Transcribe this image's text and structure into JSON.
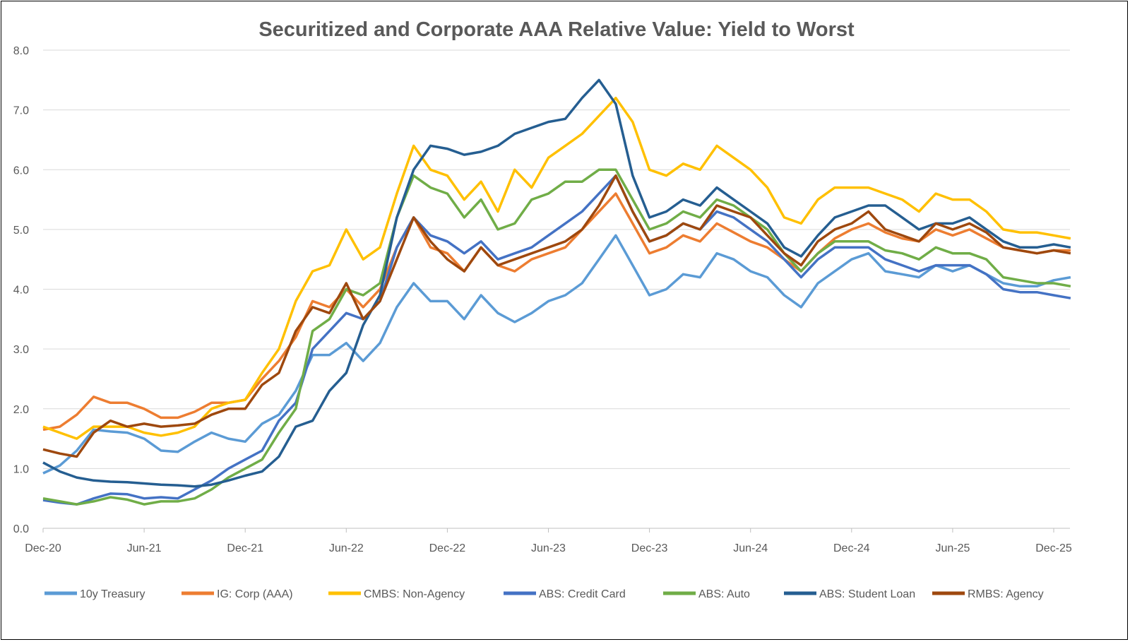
{
  "chart_data": {
    "type": "line",
    "title": "Securitized and Corporate AAA Relative Value: Yield to Worst",
    "xlabel": "",
    "ylabel": "",
    "ylim": [
      0,
      8
    ],
    "yticks": [
      "0.0",
      "1.0",
      "2.0",
      "3.0",
      "4.0",
      "5.0",
      "6.0",
      "7.0",
      "8.0"
    ],
    "xticks": [
      "Dec-20",
      "Jun-21",
      "Dec-21",
      "Jun-22",
      "Dec-22",
      "Jun-23",
      "Dec-23",
      "Jun-24",
      "Dec-24",
      "Jun-25",
      "Dec-25"
    ],
    "grid": "horizontal",
    "legend": "bottom",
    "x": [
      "2020-12",
      "2021-01",
      "2021-02",
      "2021-03",
      "2021-04",
      "2021-05",
      "2021-06",
      "2021-07",
      "2021-08",
      "2021-09",
      "2021-10",
      "2021-11",
      "2021-12",
      "2022-01",
      "2022-02",
      "2022-03",
      "2022-04",
      "2022-05",
      "2022-06",
      "2022-07",
      "2022-08",
      "2022-09",
      "2022-10",
      "2022-11",
      "2022-12",
      "2023-01",
      "2023-02",
      "2023-03",
      "2023-04",
      "2023-05",
      "2023-06",
      "2023-07",
      "2023-08",
      "2023-09",
      "2023-10",
      "2023-11",
      "2023-12",
      "2024-01",
      "2024-02",
      "2024-03",
      "2024-04",
      "2024-05",
      "2024-06",
      "2024-07",
      "2024-08",
      "2024-09",
      "2024-10",
      "2024-11",
      "2024-12",
      "2025-01",
      "2025-02",
      "2025-03",
      "2025-04",
      "2025-05",
      "2025-06",
      "2025-07",
      "2025-08",
      "2025-09",
      "2025-10",
      "2025-11",
      "2025-12",
      "2026-01"
    ],
    "series": [
      {
        "name": "10y Treasury",
        "color": "#5B9BD5",
        "values": [
          0.92,
          1.05,
          1.3,
          1.65,
          1.62,
          1.6,
          1.5,
          1.3,
          1.28,
          1.45,
          1.6,
          1.5,
          1.45,
          1.75,
          1.9,
          2.3,
          2.9,
          2.9,
          3.1,
          2.8,
          3.1,
          3.7,
          4.1,
          3.8,
          3.8,
          3.5,
          3.9,
          3.6,
          3.45,
          3.6,
          3.8,
          3.9,
          4.1,
          4.5,
          4.9,
          4.4,
          3.9,
          4.0,
          4.25,
          4.2,
          4.6,
          4.5,
          4.3,
          4.2,
          3.9,
          3.7,
          4.1,
          4.3,
          4.5,
          4.6,
          4.3,
          4.25,
          4.2,
          4.4,
          4.3,
          4.4,
          4.25,
          4.1,
          4.05,
          4.05,
          4.15,
          4.2
        ]
      },
      {
        "name": "IG: Corp (AAA)",
        "color": "#ED7D31",
        "values": [
          1.65,
          1.7,
          1.9,
          2.2,
          2.1,
          2.1,
          2.0,
          1.85,
          1.85,
          1.95,
          2.1,
          2.1,
          2.15,
          2.5,
          2.8,
          3.2,
          3.8,
          3.7,
          4.0,
          3.7,
          4.0,
          4.7,
          5.2,
          4.7,
          4.6,
          4.3,
          4.7,
          4.4,
          4.3,
          4.5,
          4.6,
          4.7,
          5.0,
          5.3,
          5.6,
          5.1,
          4.6,
          4.7,
          4.9,
          4.8,
          5.1,
          4.95,
          4.8,
          4.7,
          4.5,
          4.3,
          4.6,
          4.85,
          5.0,
          5.1,
          4.95,
          4.85,
          4.8,
          5.0,
          4.9,
          5.0,
          4.85,
          4.7,
          4.65,
          4.6,
          4.65,
          4.65
        ]
      },
      {
        "name": "CMBS: Non-Agency",
        "color": "#FFC000",
        "values": [
          1.7,
          1.6,
          1.5,
          1.7,
          1.7,
          1.7,
          1.6,
          1.55,
          1.6,
          1.7,
          2.0,
          2.1,
          2.15,
          2.6,
          3.0,
          3.8,
          4.3,
          4.4,
          5.0,
          4.5,
          4.7,
          5.6,
          6.4,
          6.0,
          5.9,
          5.5,
          5.8,
          5.3,
          6.0,
          5.7,
          6.2,
          6.4,
          6.6,
          6.9,
          7.2,
          6.8,
          6.0,
          5.9,
          6.1,
          6.0,
          6.4,
          6.2,
          6.0,
          5.7,
          5.2,
          5.1,
          5.5,
          5.7,
          5.7,
          5.7,
          5.6,
          5.5,
          5.3,
          5.6,
          5.5,
          5.5,
          5.3,
          5.0,
          4.95,
          4.95,
          4.9,
          4.85
        ]
      },
      {
        "name": "ABS: Credit Card",
        "color": "#4472C4",
        "values": [
          0.47,
          0.43,
          0.4,
          0.5,
          0.58,
          0.57,
          0.5,
          0.52,
          0.5,
          0.65,
          0.8,
          1.0,
          1.15,
          1.3,
          1.8,
          2.1,
          3.0,
          3.3,
          3.6,
          3.5,
          3.8,
          4.7,
          5.2,
          4.9,
          4.8,
          4.6,
          4.8,
          4.5,
          4.6,
          4.7,
          4.9,
          5.1,
          5.3,
          5.6,
          5.9,
          5.3,
          4.8,
          4.9,
          5.1,
          5.0,
          5.3,
          5.2,
          5.0,
          4.8,
          4.5,
          4.2,
          4.5,
          4.7,
          4.7,
          4.7,
          4.5,
          4.4,
          4.3,
          4.4,
          4.4,
          4.4,
          4.25,
          4.0,
          3.95,
          3.95,
          3.9,
          3.85
        ]
      },
      {
        "name": "ABS: Auto",
        "color": "#70AD47",
        "values": [
          0.5,
          0.45,
          0.4,
          0.45,
          0.52,
          0.48,
          0.4,
          0.45,
          0.45,
          0.5,
          0.65,
          0.85,
          1.0,
          1.15,
          1.6,
          2.0,
          3.3,
          3.5,
          4.0,
          3.9,
          4.1,
          5.2,
          5.9,
          5.7,
          5.6,
          5.2,
          5.5,
          5.0,
          5.1,
          5.5,
          5.6,
          5.8,
          5.8,
          6.0,
          6.0,
          5.5,
          5.0,
          5.1,
          5.3,
          5.2,
          5.5,
          5.4,
          5.2,
          5.0,
          4.6,
          4.3,
          4.6,
          4.8,
          4.8,
          4.8,
          4.65,
          4.6,
          4.5,
          4.7,
          4.6,
          4.6,
          4.5,
          4.2,
          4.15,
          4.1,
          4.1,
          4.05
        ]
      },
      {
        "name": "ABS: Student Loan",
        "color": "#255E91",
        "values": [
          1.1,
          0.95,
          0.85,
          0.8,
          0.78,
          0.77,
          0.75,
          0.73,
          0.72,
          0.7,
          0.73,
          0.8,
          0.88,
          0.95,
          1.2,
          1.7,
          1.8,
          2.3,
          2.6,
          3.4,
          3.9,
          5.2,
          6.0,
          6.4,
          6.35,
          6.25,
          6.3,
          6.4,
          6.6,
          6.7,
          6.8,
          6.85,
          7.2,
          7.5,
          7.1,
          5.9,
          5.2,
          5.3,
          5.5,
          5.4,
          5.7,
          5.5,
          5.3,
          5.1,
          4.7,
          4.55,
          4.9,
          5.2,
          5.3,
          5.4,
          5.4,
          5.2,
          5.0,
          5.1,
          5.1,
          5.2,
          5.0,
          4.8,
          4.7,
          4.7,
          4.75,
          4.7
        ]
      },
      {
        "name": "RMBS: Agency",
        "color": "#9E480E",
        "values": [
          1.32,
          1.25,
          1.2,
          1.6,
          1.8,
          1.7,
          1.75,
          1.7,
          1.72,
          1.75,
          1.9,
          2.0,
          2.0,
          2.4,
          2.6,
          3.3,
          3.7,
          3.6,
          4.1,
          3.5,
          3.8,
          4.5,
          5.2,
          4.8,
          4.5,
          4.3,
          4.7,
          4.4,
          4.5,
          4.6,
          4.7,
          4.8,
          5.0,
          5.4,
          5.9,
          5.3,
          4.8,
          4.9,
          5.1,
          5.0,
          5.4,
          5.3,
          5.2,
          4.9,
          4.6,
          4.4,
          4.8,
          5.0,
          5.1,
          5.3,
          5.0,
          4.9,
          4.8,
          5.1,
          5.0,
          5.1,
          4.95,
          4.7,
          4.65,
          4.6,
          4.65,
          4.6
        ]
      }
    ]
  }
}
